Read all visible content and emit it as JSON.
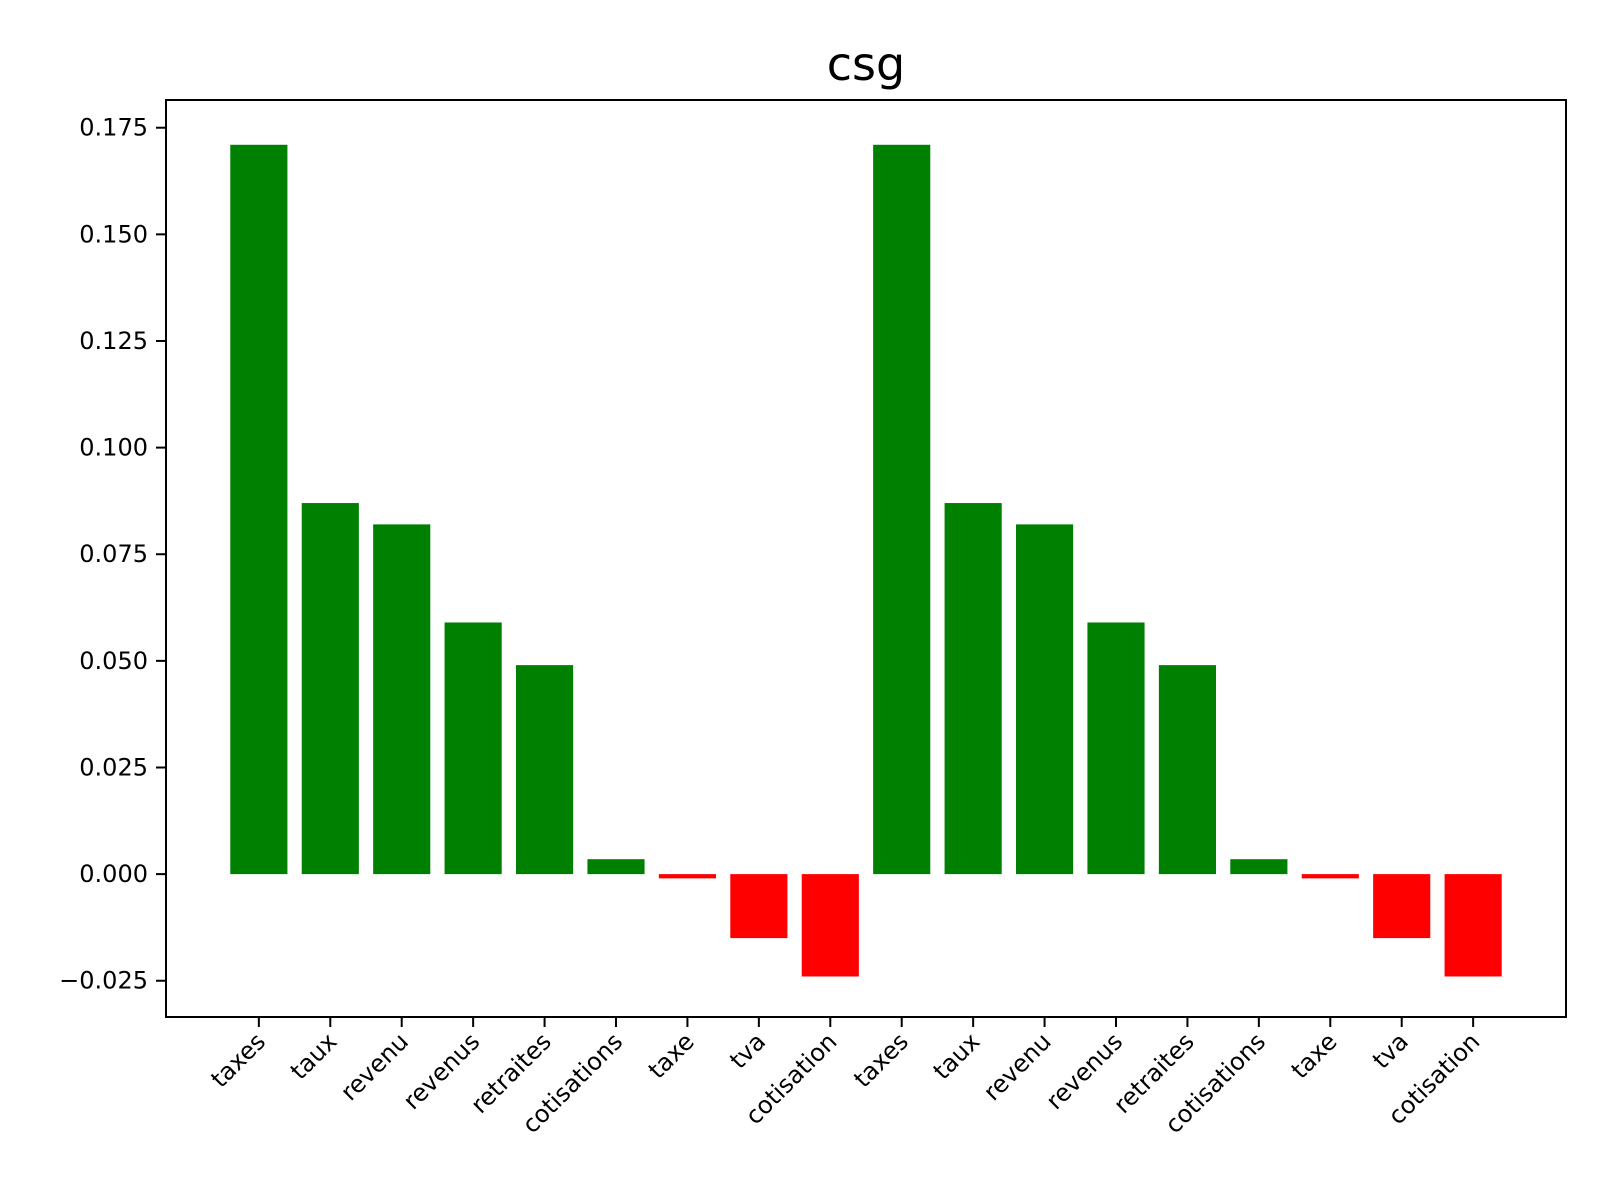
{
  "chart_data": {
    "type": "bar",
    "title": "csg",
    "xlabel": "",
    "ylabel": "",
    "categories": [
      "taxes",
      "taux",
      "revenu",
      "revenus",
      "retraites",
      "cotisations",
      "taxe",
      "tva",
      "cotisation",
      "taxes",
      "taux",
      "revenu",
      "revenus",
      "retraites",
      "cotisations",
      "taxe",
      "tva",
      "cotisation"
    ],
    "values": [
      0.171,
      0.087,
      0.082,
      0.059,
      0.049,
      0.0035,
      -0.001,
      -0.015,
      -0.024,
      0.171,
      0.087,
      0.082,
      0.059,
      0.049,
      0.0035,
      -0.001,
      -0.015,
      -0.024
    ],
    "ylim": [
      -0.0335,
      0.1815
    ],
    "yticks": [
      -0.025,
      0.0,
      0.025,
      0.05,
      0.075,
      0.1,
      0.125,
      0.15,
      0.175
    ],
    "ytick_labels": [
      "−0.025",
      "0.000",
      "0.025",
      "0.050",
      "0.075",
      "0.100",
      "0.125",
      "0.150",
      "0.175"
    ],
    "colors": {
      "positive": "#008000",
      "negative": "#ff0000",
      "axis": "#000000",
      "background": "#ffffff"
    },
    "grid": false,
    "legend": "none"
  }
}
